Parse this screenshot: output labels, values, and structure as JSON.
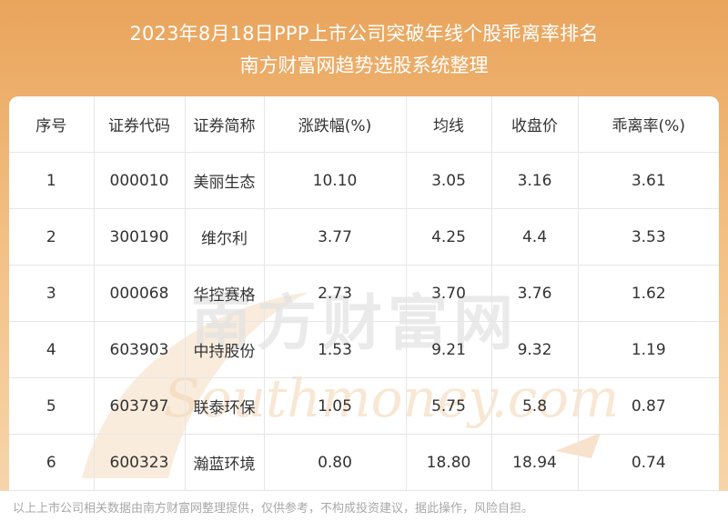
{
  "header": {
    "title": "2023年8月18日PPP上市公司突破年线个股乖离率排名",
    "subtitle": "南方财富网趋势选股系统整理"
  },
  "watermark": {
    "cn": "南方财富网",
    "en": "Southmoney.com"
  },
  "table": {
    "columns": [
      "序号",
      "证券代码",
      "证券简称",
      "涨跌幅(%)",
      "均线",
      "收盘价",
      "乖离率(%)"
    ],
    "rows": [
      [
        "1",
        "000010",
        "美丽生态",
        "10.10",
        "3.05",
        "3.16",
        "3.61"
      ],
      [
        "2",
        "300190",
        "维尔利",
        "3.77",
        "4.25",
        "4.4",
        "3.53"
      ],
      [
        "3",
        "000068",
        "华控赛格",
        "2.73",
        "3.70",
        "3.76",
        "1.62"
      ],
      [
        "4",
        "603903",
        "中持股份",
        "1.53",
        "9.21",
        "9.32",
        "1.19"
      ],
      [
        "5",
        "603797",
        "联泰环保",
        "1.05",
        "5.75",
        "5.8",
        "0.87"
      ],
      [
        "6",
        "600323",
        "瀚蓝环境",
        "0.80",
        "18.80",
        "18.94",
        "0.74"
      ]
    ]
  },
  "footer": {
    "disclaimer": "以上上市公司相关数据由南方财富网整理提供，仅供参考，不构成投资建议，据此操作，风险自担。"
  },
  "colors": {
    "header_gradient_top": "#e9a45c",
    "header_gradient_bottom": "#f7d8b0",
    "watermark": "#f0c9a0"
  }
}
